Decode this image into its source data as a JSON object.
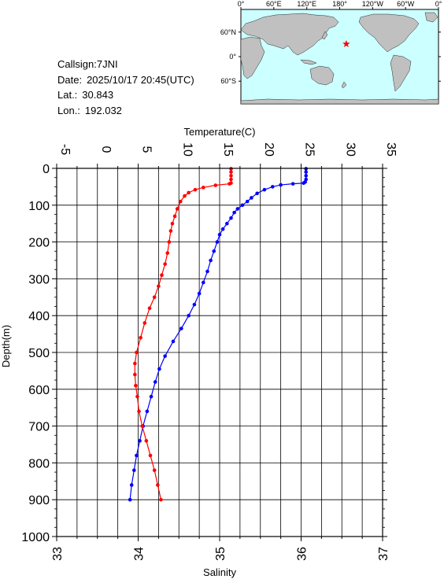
{
  "station": {
    "callsign_label": "Callsign:",
    "callsign": "7JNI",
    "date_label": "Date:",
    "date": "2025/10/17 20:45(UTC)",
    "lat_label": "Lat.:",
    "lat": "30.843",
    "lon_label": "Lon.:",
    "lon": "192.032"
  },
  "map": {
    "lon_ticks": [
      "0°",
      "60°E",
      "120°E",
      "180°",
      "120°W",
      "60°W",
      "0°"
    ],
    "lat_ticks": [
      "60°N",
      "0°",
      "60°S"
    ],
    "ocean_color": "#ccffff",
    "land_color": "#c0c0c0",
    "marker": {
      "lon": 192.032,
      "lat": 30.843,
      "color": "#ff0000",
      "icon": "star-icon"
    }
  },
  "chart_data": {
    "type": "line",
    "y_axis": {
      "label": "Depth(m)",
      "range": [
        0,
        1000
      ],
      "inverted": true,
      "ticks": [
        "0",
        "100",
        "200",
        "300",
        "400",
        "500",
        "600",
        "700",
        "800",
        "900",
        "1000"
      ]
    },
    "top_axis": {
      "label": "Temperature(C)",
      "range": [
        -5,
        35
      ],
      "ticks": [
        "-5",
        "0",
        "5",
        "10",
        "15",
        "20",
        "25",
        "30",
        "35"
      ]
    },
    "bottom_axis": {
      "label": "Salinity",
      "range": [
        33,
        37
      ],
      "ticks": [
        "33",
        "34",
        "35",
        "36",
        "37"
      ]
    },
    "grid": true,
    "series": [
      {
        "color": "#0000ff",
        "axis": "temperature",
        "points": [
          [
            25.6,
            1
          ],
          [
            25.6,
            10
          ],
          [
            25.6,
            20
          ],
          [
            25.6,
            30
          ],
          [
            25.5,
            37
          ],
          [
            25.3,
            40
          ],
          [
            24.0,
            42
          ],
          [
            22.5,
            45
          ],
          [
            21.5,
            50
          ],
          [
            20.5,
            58
          ],
          [
            19.6,
            68
          ],
          [
            18.9,
            80
          ],
          [
            18.4,
            90
          ],
          [
            17.8,
            100
          ],
          [
            17.2,
            110
          ],
          [
            16.8,
            120
          ],
          [
            16.4,
            135
          ],
          [
            15.9,
            150
          ],
          [
            15.4,
            165
          ],
          [
            15.0,
            180
          ],
          [
            14.7,
            200
          ],
          [
            14.3,
            225
          ],
          [
            13.9,
            250
          ],
          [
            13.5,
            280
          ],
          [
            13.0,
            310
          ],
          [
            12.5,
            340
          ],
          [
            11.9,
            370
          ],
          [
            11.2,
            400
          ],
          [
            10.3,
            435
          ],
          [
            9.3,
            470
          ],
          [
            8.3,
            510
          ],
          [
            7.6,
            545
          ],
          [
            7.1,
            580
          ],
          [
            6.6,
            620
          ],
          [
            6.1,
            660
          ],
          [
            5.6,
            700
          ],
          [
            5.2,
            740
          ],
          [
            4.8,
            780
          ],
          [
            4.5,
            820
          ],
          [
            4.2,
            860
          ],
          [
            4.0,
            900
          ]
        ]
      },
      {
        "color": "#ff0000",
        "axis": "salinity",
        "points": [
          [
            35.14,
            1
          ],
          [
            35.14,
            10
          ],
          [
            35.14,
            20
          ],
          [
            35.14,
            30
          ],
          [
            35.14,
            40
          ],
          [
            35.12,
            42
          ],
          [
            34.95,
            46
          ],
          [
            34.8,
            52
          ],
          [
            34.7,
            58
          ],
          [
            34.62,
            66
          ],
          [
            34.57,
            75
          ],
          [
            34.52,
            90
          ],
          [
            34.48,
            110
          ],
          [
            34.45,
            130
          ],
          [
            34.42,
            150
          ],
          [
            34.4,
            170
          ],
          [
            34.38,
            200
          ],
          [
            34.36,
            230
          ],
          [
            34.33,
            260
          ],
          [
            34.29,
            290
          ],
          [
            34.25,
            320
          ],
          [
            34.2,
            350
          ],
          [
            34.14,
            380
          ],
          [
            34.08,
            420
          ],
          [
            34.03,
            460
          ],
          [
            33.98,
            500
          ],
          [
            33.96,
            530
          ],
          [
            33.96,
            560
          ],
          [
            33.97,
            590
          ],
          [
            33.99,
            620
          ],
          [
            34.01,
            660
          ],
          [
            34.05,
            700
          ],
          [
            34.1,
            740
          ],
          [
            34.15,
            780
          ],
          [
            34.2,
            820
          ],
          [
            34.24,
            860
          ],
          [
            34.28,
            900
          ]
        ]
      }
    ]
  }
}
